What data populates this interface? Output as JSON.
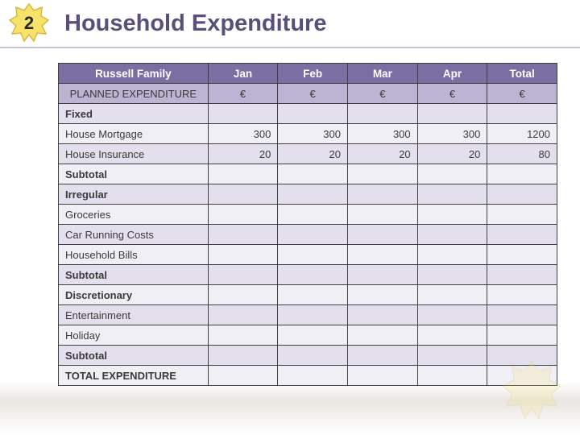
{
  "badge_number": "2",
  "title": "Household Expenditure",
  "colors": {
    "header_bg": "#7a6ea3",
    "subheader_bg": "#bcb4d2",
    "row_odd": "#e3dfec",
    "row_even": "#f1eff6",
    "border": "#3f3f3f",
    "title_color": "#5a4f7a",
    "star_fill": "#f7e36a",
    "star_stroke": "#d8b743"
  },
  "table": {
    "header1": [
      "Russell Family",
      "Jan",
      "Feb",
      "Mar",
      "Apr",
      "Total"
    ],
    "header2": [
      "PLANNED EXPENDITURE",
      "€",
      "€",
      "€",
      "€",
      "€"
    ],
    "rows": [
      {
        "label": "Fixed",
        "bold": true,
        "cells": [
          "",
          "",
          "",
          "",
          ""
        ]
      },
      {
        "label": "House Mortgage",
        "bold": false,
        "cells": [
          "300",
          "300",
          "300",
          "300",
          "1200"
        ]
      },
      {
        "label": "House Insurance",
        "bold": false,
        "cells": [
          "20",
          "20",
          "20",
          "20",
          "80"
        ]
      },
      {
        "label": "Subtotal",
        "bold": true,
        "cells": [
          "",
          "",
          "",
          "",
          ""
        ]
      },
      {
        "label": "Irregular",
        "bold": true,
        "cells": [
          "",
          "",
          "",
          "",
          ""
        ]
      },
      {
        "label": "Groceries",
        "bold": false,
        "cells": [
          "",
          "",
          "",
          "",
          ""
        ]
      },
      {
        "label": "Car Running Costs",
        "bold": false,
        "cells": [
          "",
          "",
          "",
          "",
          ""
        ]
      },
      {
        "label": "Household Bills",
        "bold": false,
        "cells": [
          "",
          "",
          "",
          "",
          ""
        ]
      },
      {
        "label": "Subtotal",
        "bold": true,
        "cells": [
          "",
          "",
          "",
          "",
          ""
        ]
      },
      {
        "label": "Discretionary",
        "bold": true,
        "cells": [
          "",
          "",
          "",
          "",
          ""
        ]
      },
      {
        "label": "Entertainment",
        "bold": false,
        "cells": [
          "",
          "",
          "",
          "",
          ""
        ]
      },
      {
        "label": "Holiday",
        "bold": false,
        "cells": [
          "",
          "",
          "",
          "",
          ""
        ]
      },
      {
        "label": "Subtotal",
        "bold": true,
        "cells": [
          "",
          "",
          "",
          "",
          ""
        ]
      },
      {
        "label": "TOTAL EXPENDITURE",
        "bold": true,
        "cells": [
          "",
          "",
          "",
          "",
          ""
        ]
      }
    ]
  }
}
